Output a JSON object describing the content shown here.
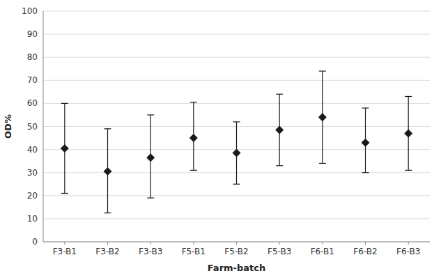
{
  "chart_data": {
    "type": "errorbar",
    "xlabel": "Farm-batch",
    "ylabel": "OD%",
    "categories": [
      "F3-B1",
      "F3-B2",
      "F3-B3",
      "F5-B1",
      "F5-B2",
      "F5-B3",
      "F6-B1",
      "F6-B2",
      "F6-B3"
    ],
    "values": [
      40.5,
      30.5,
      36.5,
      45.0,
      38.5,
      48.5,
      54.0,
      43.0,
      47.0
    ],
    "lower": [
      21.0,
      12.5,
      19.0,
      31.0,
      25.0,
      33.0,
      34.0,
      30.0,
      31.0
    ],
    "upper": [
      60.0,
      49.0,
      55.0,
      60.5,
      52.0,
      64.0,
      74.0,
      58.0,
      63.0
    ],
    "ylim": [
      0,
      100
    ],
    "yticks": [
      0,
      10,
      20,
      30,
      40,
      50,
      60,
      70,
      80,
      90,
      100
    ],
    "marker": "diamond",
    "color": "#1a1a1a",
    "grid": true
  }
}
